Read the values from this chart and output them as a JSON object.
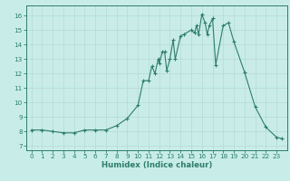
{
  "x": [
    0,
    1,
    2,
    3,
    4,
    5,
    6,
    7,
    8,
    9,
    10,
    10.5,
    11,
    11.3,
    11.6,
    11.9,
    12,
    12.3,
    12.5,
    12.7,
    13,
    13.3,
    13.5,
    14,
    14.3,
    15,
    15.3,
    15.5,
    15.7,
    16,
    16.3,
    16.5,
    16.7,
    17,
    17.3,
    18,
    18.5,
    19,
    20,
    21,
    22,
    23,
    23.5
  ],
  "y": [
    8.1,
    8.1,
    8.0,
    7.9,
    7.9,
    8.1,
    8.1,
    8.1,
    8.4,
    8.9,
    9.8,
    11.5,
    11.5,
    12.5,
    12.0,
    13.0,
    12.7,
    13.5,
    13.5,
    12.2,
    13.0,
    14.3,
    13.0,
    14.6,
    14.7,
    15.0,
    14.8,
    15.3,
    14.7,
    16.1,
    15.5,
    14.7,
    15.3,
    15.8,
    12.6,
    15.3,
    15.5,
    14.2,
    12.1,
    9.7,
    8.3,
    7.6,
    7.5
  ],
  "xlabel": "Humidex (Indice chaleur)",
  "xlim": [
    -0.5,
    24.0
  ],
  "ylim": [
    6.7,
    16.7
  ],
  "xticks": [
    0,
    1,
    2,
    3,
    4,
    5,
    6,
    7,
    8,
    9,
    10,
    11,
    12,
    13,
    14,
    15,
    16,
    17,
    18,
    19,
    20,
    21,
    22,
    23
  ],
  "yticks": [
    7,
    8,
    9,
    10,
    11,
    12,
    13,
    14,
    15,
    16
  ],
  "line_color": "#2e7d6e",
  "marker_color": "#2e7d6e",
  "bg_color": "#c8ede8",
  "grid_color_major": "#b8d8d2",
  "grid_color_minor": "#d0e8e4",
  "tick_color": "#2e7d6e",
  "label_color": "#2e7d6e",
  "spine_color": "#2e7d6e",
  "tick_fontsize": 5.2,
  "xlabel_fontsize": 6.2
}
